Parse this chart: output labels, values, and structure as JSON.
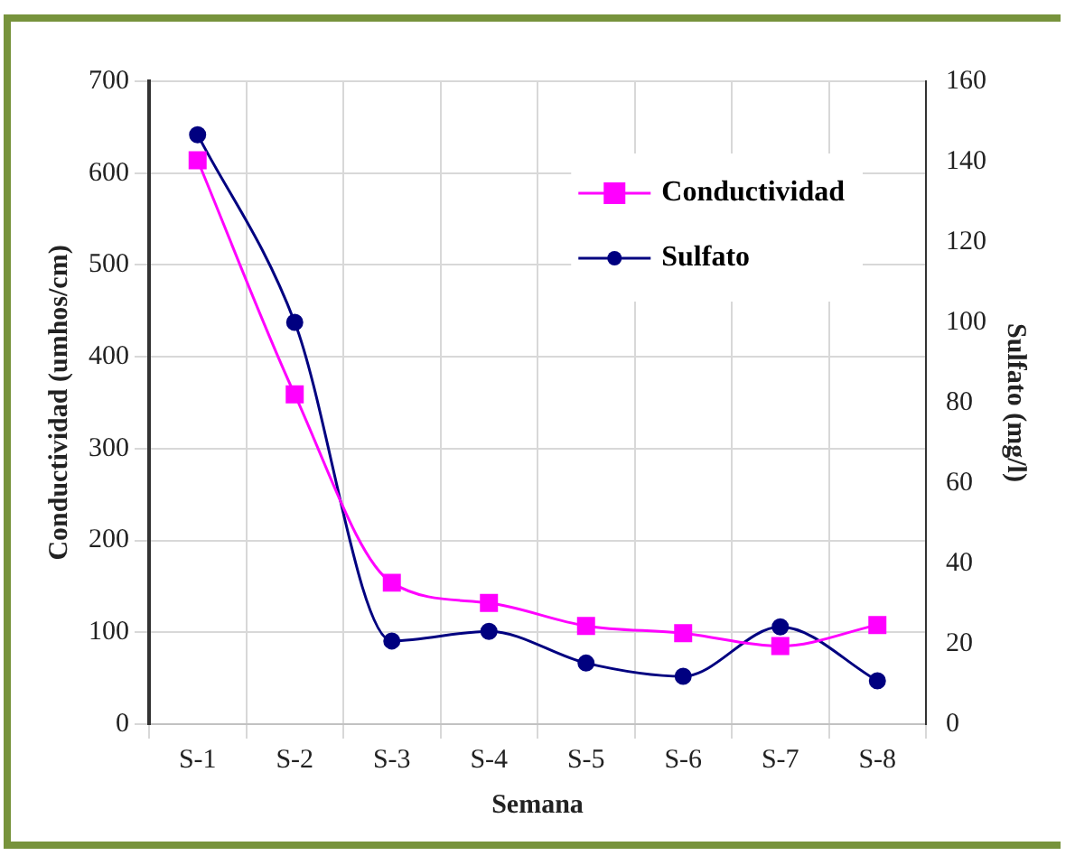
{
  "chart_data": {
    "type": "line",
    "categories": [
      "S-1",
      "S-2",
      "S-3",
      "S-4",
      "S-5",
      "S-6",
      "S-7",
      "S-8"
    ],
    "series": [
      {
        "name": "Conductividad",
        "color": "#ff00ff",
        "marker": "square",
        "values": [
          614,
          359,
          154,
          132,
          107,
          99,
          85,
          108
        ]
      },
      {
        "name": "Sulfato",
        "color": "#000080",
        "marker": "circle",
        "axis": "y2",
        "values": [
          146.7,
          100,
          20.7,
          23.1,
          15.2,
          11.9,
          24.2,
          10.8
        ]
      }
    ],
    "xlabel": "Semana",
    "ylabel": "Conductividad (umhos/cm)",
    "y2label": "Sulfato (mg/l)",
    "ylim": [
      0,
      700
    ],
    "yticks": [
      0,
      100,
      200,
      300,
      400,
      500,
      600,
      700
    ],
    "y2lim": [
      0,
      160
    ],
    "y2ticks": [
      0,
      20,
      40,
      60,
      80,
      100,
      120,
      140,
      160
    ],
    "grid": true,
    "legend": "top right"
  }
}
